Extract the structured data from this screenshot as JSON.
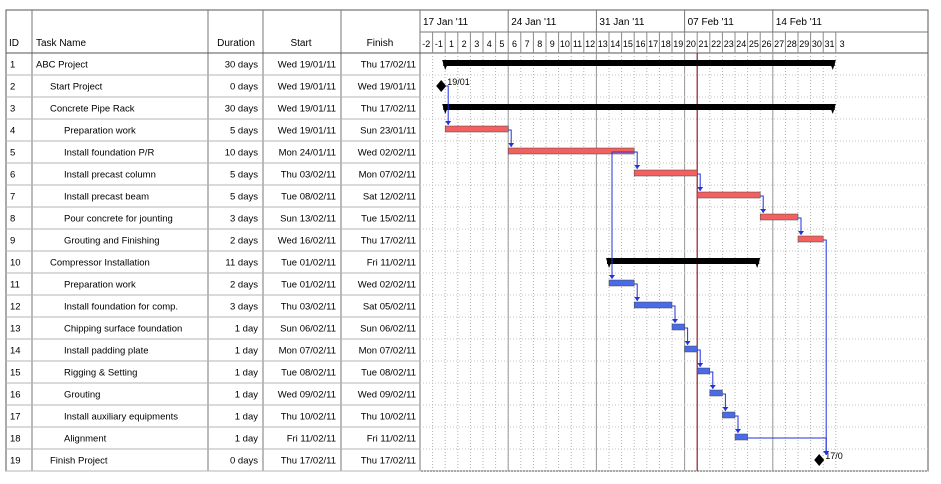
{
  "columns": {
    "id": "ID",
    "task_name": "Task Name",
    "duration": "Duration",
    "start": "Start",
    "finish": "Finish"
  },
  "timeline": {
    "weeks": [
      "17 Jan '11",
      "24 Jan '11",
      "31 Jan '11",
      "07 Feb '11",
      "14 Feb '11"
    ],
    "days": [
      "-2",
      "-1",
      "1",
      "2",
      "3",
      "4",
      "5",
      "6",
      "7",
      "8",
      "9",
      "10",
      "11",
      "12",
      "13",
      "14",
      "15",
      "16",
      "17",
      "18",
      "19",
      "20",
      "21",
      "22",
      "23",
      "24",
      "25",
      "26",
      "27",
      "28",
      "29",
      "30",
      "31",
      "3"
    ],
    "today_day": "21"
  },
  "tasks": [
    {
      "id": "1",
      "name": "ABC Project",
      "duration": "30 days",
      "start": "Wed 19/01/11",
      "finish": "Thu 17/02/11",
      "level": 0,
      "kind": "summary",
      "bar_start": 1,
      "bar_end": 31
    },
    {
      "id": "2",
      "name": "Start Project",
      "duration": "0 days",
      "start": "Wed 19/01/11",
      "finish": "Wed 19/01/11",
      "level": 1,
      "kind": "milestone",
      "bar_start": 1,
      "label": "19/01"
    },
    {
      "id": "3",
      "name": "Concrete Pipe Rack",
      "duration": "30 days",
      "start": "Wed 19/01/11",
      "finish": "Thu 17/02/11",
      "level": 1,
      "kind": "summary",
      "bar_start": 1,
      "bar_end": 31
    },
    {
      "id": "4",
      "name": "Preparation work",
      "duration": "5 days",
      "start": "Wed 19/01/11",
      "finish": "Sun 23/01/11",
      "level": 2,
      "kind": "critical",
      "bar_start": 1,
      "bar_end": 6
    },
    {
      "id": "5",
      "name": "Install foundation P/R",
      "duration": "10 days",
      "start": "Mon 24/01/11",
      "finish": "Wed 02/02/11",
      "level": 2,
      "kind": "critical",
      "bar_start": 6,
      "bar_end": 16
    },
    {
      "id": "6",
      "name": "Install precast column",
      "duration": "5 days",
      "start": "Thu 03/02/11",
      "finish": "Mon 07/02/11",
      "level": 2,
      "kind": "critical",
      "bar_start": 16,
      "bar_end": 21
    },
    {
      "id": "7",
      "name": "Install  precast beam",
      "duration": "5 days",
      "start": "Tue 08/02/11",
      "finish": "Sat 12/02/11",
      "level": 2,
      "kind": "critical",
      "bar_start": 21,
      "bar_end": 26
    },
    {
      "id": "8",
      "name": "Pour concrete for jounting",
      "duration": "3 days",
      "start": "Sun 13/02/11",
      "finish": "Tue 15/02/11",
      "level": 2,
      "kind": "critical",
      "bar_start": 26,
      "bar_end": 29
    },
    {
      "id": "9",
      "name": "Grouting and Finishing",
      "duration": "2 days",
      "start": "Wed 16/02/11",
      "finish": "Thu 17/02/11",
      "level": 2,
      "kind": "critical",
      "bar_start": 29,
      "bar_end": 31
    },
    {
      "id": "10",
      "name": "Compressor Installation",
      "duration": "11 days",
      "start": "Tue 01/02/11",
      "finish": "Fri 11/02/11",
      "level": 1,
      "kind": "summary",
      "bar_start": 14,
      "bar_end": 25
    },
    {
      "id": "11",
      "name": "Preparation work",
      "duration": "2 days",
      "start": "Tue 01/02/11",
      "finish": "Wed 02/02/11",
      "level": 2,
      "kind": "normal",
      "bar_start": 14,
      "bar_end": 16
    },
    {
      "id": "12",
      "name": "Install foundation for comp.",
      "duration": "3 days",
      "start": "Thu 03/02/11",
      "finish": "Sat 05/02/11",
      "level": 2,
      "kind": "normal",
      "bar_start": 16,
      "bar_end": 19
    },
    {
      "id": "13",
      "name": "Chipping surface foundation",
      "duration": "1 day",
      "start": "Sun 06/02/11",
      "finish": "Sun 06/02/11",
      "level": 2,
      "kind": "normal",
      "bar_start": 19,
      "bar_end": 20
    },
    {
      "id": "14",
      "name": "Install padding plate",
      "duration": "1 day",
      "start": "Mon 07/02/11",
      "finish": "Mon 07/02/11",
      "level": 2,
      "kind": "normal",
      "bar_start": 20,
      "bar_end": 21
    },
    {
      "id": "15",
      "name": "Rigging & Setting",
      "duration": "1 day",
      "start": "Tue 08/02/11",
      "finish": "Tue 08/02/11",
      "level": 2,
      "kind": "normal",
      "bar_start": 21,
      "bar_end": 22
    },
    {
      "id": "16",
      "name": "Grouting",
      "duration": "1 day",
      "start": "Wed 09/02/11",
      "finish": "Wed 09/02/11",
      "level": 2,
      "kind": "normal",
      "bar_start": 22,
      "bar_end": 23
    },
    {
      "id": "17",
      "name": "Install auxiliary equipments",
      "duration": "1 day",
      "start": "Thu 10/02/11",
      "finish": "Thu 10/02/11",
      "level": 2,
      "kind": "normal",
      "bar_start": 23,
      "bar_end": 24
    },
    {
      "id": "18",
      "name": "Alignment",
      "duration": "1 day",
      "start": "Fri 11/02/11",
      "finish": "Fri 11/02/11",
      "level": 2,
      "kind": "normal",
      "bar_start": 24,
      "bar_end": 25
    },
    {
      "id": "19",
      "name": "Finish Project",
      "duration": "0 days",
      "start": "Thu 17/02/11",
      "finish": "Thu 17/02/11",
      "level": 1,
      "kind": "milestone",
      "bar_start": 31,
      "label": "17/0"
    }
  ],
  "colors": {
    "critical_bar": "#f46060",
    "normal_bar": "#4a6be8",
    "summary_bar": "#000000",
    "link_line": "#2233dd",
    "today_line": "#9a1f2a",
    "grid": "#9a9a9a"
  }
}
